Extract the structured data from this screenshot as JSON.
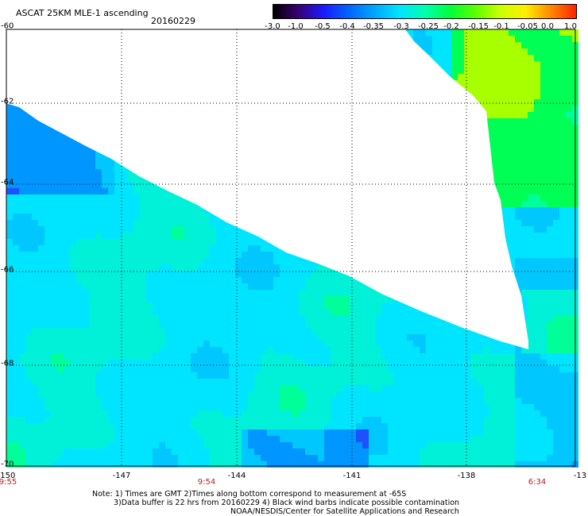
{
  "header": {
    "product_title": "ASCAT 25KM MLE-1 ascending",
    "date": "20160229"
  },
  "colorbar": {
    "labels": [
      "-3.0",
      "-1.0",
      "-0.5",
      "-0.4",
      "-0.35",
      "-0.3",
      "-0.25",
      "-0.2",
      "-0.15",
      "-0.1",
      "-0.05",
      "0.0",
      "1.0"
    ],
    "colors": [
      "#000000",
      "#3a0078",
      "#1a1aff",
      "#0066ff",
      "#00a6ff",
      "#00e5ff",
      "#00ffb0",
      "#00ff3a",
      "#5aff00",
      "#ccff00",
      "#ffee00",
      "#ff8800",
      "#ff2200"
    ]
  },
  "map": {
    "lon_labels": [
      "-150",
      "-147",
      "-144",
      "-141",
      "-138",
      "-13"
    ],
    "lat_labels": [
      "-60",
      "-62",
      "-64",
      "-66",
      "-68",
      "-70"
    ],
    "time_labels": [
      "9:55",
      "9:54",
      "6:34"
    ]
  },
  "footer": {
    "line1": "Note: 1) Times are GMT 2)Times along bottom correspond to measurement at -65S",
    "line2": "3)Data buffer is 22 hrs from 20160229 4) Black wind barbs indicate possible contamination",
    "line3": "NOAA/NESDIS/Center for Satellite Applications and Research"
  }
}
